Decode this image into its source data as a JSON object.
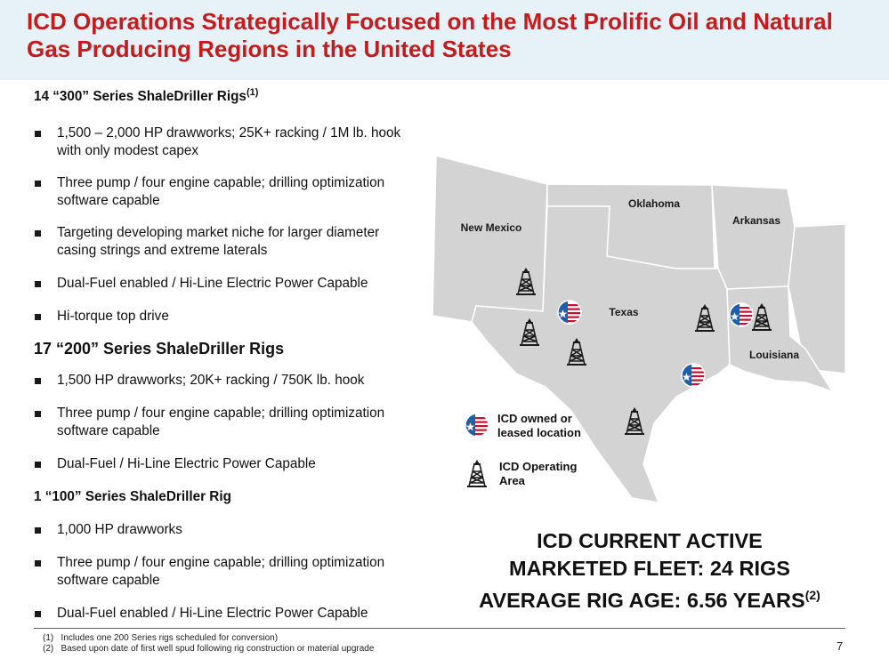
{
  "title": "ICD Operations Strategically Focused on the Most Prolific Oil and Natural Gas Producing Regions in the United States",
  "sections": [
    {
      "heading": "14 “300” Series ShaleDriller Rigs",
      "heading_sup": "(1)",
      "bullets": [
        "1,500 – 2,000 HP drawworks; 25K+ racking / 1M lb. hook with only modest capex",
        "Three pump / four engine capable; drilling optimization software capable",
        "Targeting developing market niche for larger diameter casing strings and extreme laterals",
        "Dual-Fuel enabled / Hi-Line Electric Power Capable",
        "Hi-torque top drive"
      ]
    },
    {
      "heading": "17 “200” Series ShaleDriller Rigs",
      "heading_sup": "",
      "bullets": [
        "1,500 HP drawworks; 20K+ racking / 750K lb. hook",
        "Three pump / four engine capable; drilling optimization software capable",
        "Dual-Fuel / Hi-Line Electric Power Capable"
      ]
    },
    {
      "heading": "1 “100” Series ShaleDriller Rig",
      "heading_sup": "",
      "bullets": [
        "1,000 HP drawworks",
        "Three pump / four engine capable; drilling optimization software capable",
        "Dual-Fuel enabled / Hi-Line Electric Power Capable"
      ]
    }
  ],
  "map": {
    "states": [
      "New Mexico",
      "Oklahoma",
      "Arkansas",
      "Texas",
      "Louisiana"
    ],
    "legend": {
      "location": "ICD owned or leased location",
      "area": "ICD Operating Area"
    },
    "location_icon": "us-flag-circle-icon",
    "area_icon": "drilling-rig-icon",
    "colors": {
      "land": "#d3d3d3",
      "border": "#ffffff",
      "flag_red": "#c8102e",
      "flag_blue": "#1f5ea8"
    }
  },
  "fleet": {
    "line1": "ICD CURRENT ACTIVE",
    "line2": "MARKETED FLEET: 24 RIGS",
    "line3": "AVERAGE RIG AGE: 6.56 YEARS",
    "line3_sup": "(2)"
  },
  "footnotes": [
    "(1)   Includes one 200 Series rigs scheduled for conversion)",
    "(2)   Based upon date of first well spud following rig construction or material upgrade"
  ],
  "page_number": "7",
  "colors": {
    "title": "#c41c1c",
    "header_bg": "#e6f1f8"
  }
}
